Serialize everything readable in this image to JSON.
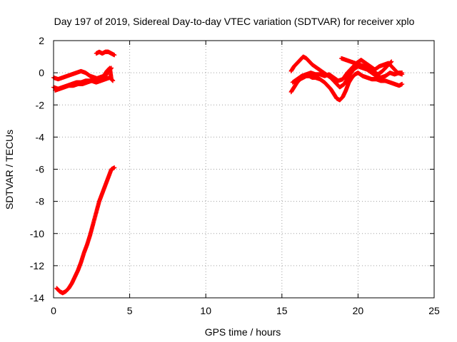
{
  "chart_data": {
    "type": "scatter",
    "title": "Day 197 of 2019, Sidereal Day-to-day VTEC variation (SDTVAR) for receiver xplo",
    "xlabel": "GPS time / hours",
    "ylabel": "SDTVAR / TECUs",
    "xlim": [
      0,
      25
    ],
    "ylim": [
      -14,
      2
    ],
    "xticks": [
      0,
      5,
      10,
      15,
      20,
      25
    ],
    "yticks": [
      2,
      0,
      -2,
      -4,
      -6,
      -8,
      -10,
      -12,
      -14
    ],
    "grid": true,
    "marker": "+",
    "series": [
      {
        "name": "SDTVAR",
        "color": "#ff0000",
        "segments": [
          {
            "x": [
              0.0,
              0.3,
              0.6,
              0.9,
              1.2,
              1.5,
              1.8,
              2.1,
              2.4,
              2.7,
              3.0,
              3.2,
              3.4,
              3.6,
              3.8
            ],
            "y": [
              -0.3,
              -0.4,
              -0.3,
              -0.2,
              -0.1,
              0.0,
              0.1,
              0.0,
              -0.2,
              -0.3,
              -0.4,
              -0.3,
              -0.2,
              0.1,
              0.3
            ]
          },
          {
            "x": [
              0.0,
              0.3,
              0.6,
              0.9,
              1.2,
              1.5,
              1.8,
              2.1,
              2.4,
              2.7,
              3.0,
              3.3,
              3.5,
              3.7,
              3.8
            ],
            "y": [
              -0.9,
              -1.0,
              -0.9,
              -0.8,
              -0.7,
              -0.6,
              -0.6,
              -0.5,
              -0.5,
              -0.4,
              -0.3,
              -0.2,
              0.1,
              0.3,
              -0.4
            ]
          },
          {
            "x": [
              0.1,
              0.4,
              0.7,
              1.0,
              1.3,
              1.6,
              1.9,
              2.2,
              2.5,
              2.8,
              3.1,
              3.4,
              3.7,
              3.9
            ],
            "y": [
              -1.1,
              -1.0,
              -0.9,
              -0.8,
              -0.8,
              -0.7,
              -0.7,
              -0.6,
              -0.5,
              -0.6,
              -0.5,
              -0.4,
              -0.3,
              -0.5
            ]
          },
          {
            "x": [
              2.8,
              3.0,
              3.2,
              3.4,
              3.6,
              3.8,
              4.0
            ],
            "y": [
              1.2,
              1.3,
              1.2,
              1.3,
              1.3,
              1.2,
              1.1
            ]
          },
          {
            "x": [
              0.2,
              0.4,
              0.6,
              0.8,
              1.0,
              1.2,
              1.4,
              1.6,
              1.8,
              2.0,
              2.2,
              2.4,
              2.6,
              2.8,
              3.0,
              3.2,
              3.4,
              3.6,
              3.8,
              4.0
            ],
            "y": [
              -13.4,
              -13.6,
              -13.7,
              -13.6,
              -13.4,
              -13.1,
              -12.7,
              -12.3,
              -11.8,
              -11.2,
              -10.7,
              -10.1,
              -9.4,
              -8.7,
              -8.0,
              -7.5,
              -7.0,
              -6.5,
              -6.0,
              -5.9
            ]
          },
          {
            "x": [
              15.6,
              15.8,
              16.0,
              16.2,
              16.4,
              16.6,
              16.8,
              17.0,
              17.2,
              17.5,
              17.8,
              18.0,
              18.2,
              18.4,
              18.6,
              18.8,
              19.0,
              19.2,
              19.4,
              19.6,
              19.8,
              20.0,
              20.3,
              20.6,
              20.9,
              21.2,
              21.5,
              21.8,
              22.1,
              22.4,
              22.7,
              22.9
            ],
            "y": [
              -1.2,
              -0.9,
              -0.6,
              -0.4,
              -0.3,
              -0.2,
              -0.2,
              -0.3,
              -0.3,
              -0.4,
              -0.6,
              -0.8,
              -1.0,
              -1.3,
              -1.6,
              -1.7,
              -1.5,
              -1.1,
              -0.6,
              -0.3,
              -0.1,
              0.0,
              -0.2,
              -0.3,
              -0.4,
              -0.4,
              -0.5,
              -0.5,
              -0.6,
              -0.7,
              -0.8,
              -0.7
            ]
          },
          {
            "x": [
              15.6,
              15.8,
              16.0,
              16.2,
              16.4,
              16.6,
              16.8,
              17.0,
              17.3,
              17.6,
              17.9,
              18.2,
              18.5,
              18.8,
              19.1,
              19.4,
              19.7,
              20.0,
              20.3,
              20.6,
              20.9,
              21.2,
              21.5,
              21.8,
              22.1,
              22.4,
              22.7,
              22.9
            ],
            "y": [
              0.1,
              0.4,
              0.6,
              0.8,
              1.0,
              0.9,
              0.7,
              0.5,
              0.3,
              0.1,
              -0.1,
              -0.3,
              -0.6,
              -0.9,
              -0.7,
              -0.2,
              0.2,
              0.4,
              0.3,
              0.2,
              0.0,
              -0.2,
              -0.3,
              -0.2,
              0.0,
              -0.1,
              0.0,
              0.0
            ]
          },
          {
            "x": [
              15.7,
              16.0,
              16.3,
              16.6,
              16.9,
              17.2,
              17.5,
              17.8,
              18.1,
              18.4,
              18.7,
              19.0,
              19.3,
              19.6,
              19.9,
              20.2,
              20.5,
              20.8,
              21.1,
              21.4,
              21.7,
              22.0,
              22.3,
              22.6,
              22.9
            ],
            "y": [
              -0.6,
              -0.4,
              -0.2,
              -0.1,
              0.0,
              -0.1,
              -0.1,
              -0.2,
              -0.1,
              -0.3,
              -0.5,
              -0.4,
              0.0,
              0.3,
              0.6,
              0.8,
              0.6,
              0.4,
              0.2,
              0.4,
              0.5,
              0.6,
              0.3,
              0.0,
              -0.1
            ]
          },
          {
            "x": [
              18.9,
              19.2,
              19.5,
              19.8,
              20.1,
              20.4,
              20.7,
              21.0,
              21.3,
              21.6,
              21.9,
              22.2
            ],
            "y": [
              0.9,
              0.8,
              0.7,
              0.6,
              0.5,
              0.4,
              0.3,
              0.1,
              -0.1,
              0.1,
              0.4,
              0.7
            ]
          }
        ]
      }
    ]
  }
}
